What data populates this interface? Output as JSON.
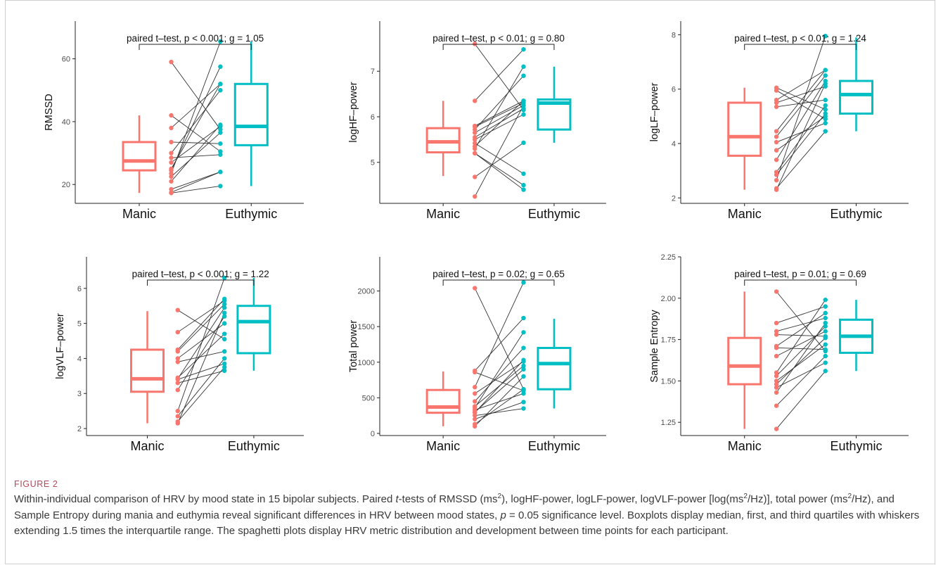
{
  "figure": {
    "label": "FIGURE 2",
    "caption_parts": [
      "Within-individual comparison of HRV by mood state in 15 bipolar subjects. Paired ",
      "t",
      "-tests of RMSSD (ms",
      "2",
      "), logHF-power, logLF-power, logVLF-power [log(ms",
      "2",
      "/Hz)], total power (ms",
      "2",
      "/Hz), and Sample Entropy during mania and euthymia reveal significant differences in HRV between mood states, ",
      "p",
      " = 0.05 significance level. Boxplots display median, first, and third quartiles with whiskers extending 1.5 times the interquartile range. The spaghetti plots display HRV metric distribution and development between time points for each participant."
    ]
  },
  "colors": {
    "manic": "#F8766D",
    "euthymic": "#00BFC4",
    "line": "#333333",
    "axis": "#222222"
  },
  "chart_data": [
    {
      "type": "box",
      "ylabel": "RMSSD",
      "categories": [
        "Manic",
        "Euthymic"
      ],
      "annotation": "paired t–test, p < 0.001; g = 1.05",
      "ylim": [
        14,
        72
      ],
      "yticks": [
        20,
        40,
        60
      ],
      "box": [
        {
          "name": "Manic",
          "whisker_low": 17.3,
          "q1": 24.5,
          "median": 27.5,
          "q3": 33.5,
          "whisker_high": 42
        },
        {
          "name": "Euthymic",
          "whisker_low": 19.5,
          "q1": 32.5,
          "median": 38.5,
          "q3": 52,
          "whisker_high": 65.5
        }
      ],
      "pairs": [
        [
          59,
          37.5
        ],
        [
          42,
          30.5
        ],
        [
          38,
          52
        ],
        [
          33.5,
          33
        ],
        [
          30,
          50
        ],
        [
          28.5,
          29.5
        ],
        [
          27,
          38.5
        ],
        [
          25,
          52
        ],
        [
          24.5,
          57.5
        ],
        [
          23.5,
          65.5
        ],
        [
          22.5,
          36.5
        ],
        [
          21,
          39
        ],
        [
          18.5,
          24
        ],
        [
          17.5,
          24
        ],
        [
          17.3,
          19.5
        ]
      ]
    },
    {
      "type": "box",
      "ylabel": "logHF–power",
      "categories": [
        "Manic",
        "Euthymic"
      ],
      "annotation": "paired t–test, p < 0.01; g = 0.80",
      "ylim": [
        4.1,
        8.1
      ],
      "yticks": [
        5,
        6,
        7
      ],
      "box": [
        {
          "name": "Manic",
          "whisker_low": 4.7,
          "q1": 5.22,
          "median": 5.45,
          "q3": 5.75,
          "whisker_high": 6.35
        },
        {
          "name": "Euthymic",
          "whisker_low": 5.43,
          "q1": 5.72,
          "median": 6.3,
          "q3": 6.38,
          "whisker_high": 7.1
        }
      ],
      "pairs": [
        [
          7.6,
          6.15
        ],
        [
          6.35,
          7.48
        ],
        [
          5.8,
          6.35
        ],
        [
          5.78,
          6.3
        ],
        [
          5.72,
          6.9
        ],
        [
          5.65,
          6.25
        ],
        [
          5.55,
          6.18
        ],
        [
          5.5,
          6.05
        ],
        [
          5.42,
          4.75
        ],
        [
          5.35,
          6.35
        ],
        [
          5.3,
          7.1
        ],
        [
          5.2,
          4.5
        ],
        [
          5.2,
          4.4
        ],
        [
          4.68,
          5.43
        ],
        [
          4.25,
          6.25
        ]
      ]
    },
    {
      "type": "box",
      "ylabel": "logLF–power",
      "categories": [
        "Manic",
        "Euthymic"
      ],
      "annotation": "paired t–test, p < 0.01; g = 1.24",
      "ylim": [
        1.8,
        8.5
      ],
      "yticks": [
        2,
        4,
        6,
        8
      ],
      "box": [
        {
          "name": "Manic",
          "whisker_low": 2.3,
          "q1": 3.55,
          "median": 4.25,
          "q3": 5.5,
          "whisker_high": 6.05
        },
        {
          "name": "Euthymic",
          "whisker_low": 4.45,
          "q1": 5.1,
          "median": 5.8,
          "q3": 6.3,
          "whisker_high": 7.9
        }
      ],
      "pairs": [
        [
          6.05,
          5.25
        ],
        [
          5.95,
          4.9
        ],
        [
          5.6,
          6.7
        ],
        [
          5.5,
          6.1
        ],
        [
          5.35,
          5.6
        ],
        [
          4.45,
          6.7
        ],
        [
          4.25,
          6.5
        ],
        [
          4.05,
          4.75
        ],
        [
          3.75,
          5.0
        ],
        [
          3.4,
          6.3
        ],
        [
          2.95,
          5.4
        ],
        [
          2.85,
          5.1
        ],
        [
          2.65,
          7.95
        ],
        [
          2.35,
          4.45
        ],
        [
          2.3,
          6.2
        ]
      ]
    },
    {
      "type": "box",
      "ylabel": "logVLF–power",
      "categories": [
        "Manic",
        "Euthymic"
      ],
      "annotation": "paired t–test, p < 0.001; g = 1.22",
      "ylim": [
        1.8,
        6.9
      ],
      "yticks": [
        2,
        3,
        4,
        5,
        6
      ],
      "box": [
        {
          "name": "Manic",
          "whisker_low": 2.15,
          "q1": 3.05,
          "median": 3.42,
          "q3": 4.25,
          "whisker_high": 5.35
        },
        {
          "name": "Euthymic",
          "whisker_low": 3.65,
          "q1": 4.15,
          "median": 5.05,
          "q3": 5.5,
          "whisker_high": 6.3
        }
      ],
      "pairs": [
        [
          5.38,
          4.55
        ],
        [
          4.75,
          5.65
        ],
        [
          4.25,
          5.7
        ],
        [
          4.2,
          5.55
        ],
        [
          4.0,
          5.0
        ],
        [
          3.9,
          4.2
        ],
        [
          3.45,
          4.7
        ],
        [
          3.42,
          5.45
        ],
        [
          3.4,
          3.85
        ],
        [
          3.3,
          3.65
        ],
        [
          3.1,
          5.2
        ],
        [
          2.5,
          6.3
        ],
        [
          2.35,
          4.0
        ],
        [
          2.2,
          3.75
        ],
        [
          2.15,
          5.3
        ]
      ]
    },
    {
      "type": "box",
      "ylabel": "Total power",
      "categories": [
        "Manic",
        "Euthymic"
      ],
      "annotation": "paired t–test, p = 0.02; g = 0.65",
      "ylim": [
        -30,
        2480
      ],
      "yticks": [
        0,
        500,
        1000,
        1500,
        2000
      ],
      "box": [
        {
          "name": "Manic",
          "whisker_low": 100,
          "q1": 290,
          "median": 370,
          "q3": 610,
          "whisker_high": 870
        },
        {
          "name": "Euthymic",
          "whisker_low": 350,
          "q1": 620,
          "median": 980,
          "q3": 1200,
          "whisker_high": 1610
        }
      ],
      "pairs": [
        [
          2040,
          620
        ],
        [
          880,
          1620
        ],
        [
          860,
          600
        ],
        [
          650,
          2120
        ],
        [
          560,
          1010
        ],
        [
          450,
          1200
        ],
        [
          380,
          950
        ],
        [
          360,
          1420
        ],
        [
          330,
          560
        ],
        [
          300,
          900
        ],
        [
          290,
          1030
        ],
        [
          250,
          350
        ],
        [
          200,
          440
        ],
        [
          130,
          620
        ],
        [
          100,
          800
        ]
      ]
    },
    {
      "type": "box",
      "ylabel": "Sample Entropy",
      "categories": [
        "Manic",
        "Euthymic"
      ],
      "annotation": "paired t–test, p = 0.01; g = 0.69",
      "ylim": [
        1.17,
        2.25
      ],
      "yticks": [
        1.25,
        1.5,
        1.75,
        2.0,
        2.25
      ],
      "ytick_labels": [
        "1.25",
        "1.50",
        "1.75",
        "2.00",
        "2.25"
      ],
      "box": [
        {
          "name": "Manic",
          "whisker_low": 1.21,
          "q1": 1.48,
          "median": 1.59,
          "q3": 1.76,
          "whisker_high": 2.04
        },
        {
          "name": "Euthymic",
          "whisker_low": 1.56,
          "q1": 1.67,
          "median": 1.77,
          "q3": 1.87,
          "whisker_high": 1.99
        }
      ],
      "pairs": [
        [
          2.04,
          1.68
        ],
        [
          1.85,
          1.95
        ],
        [
          1.8,
          1.88
        ],
        [
          1.78,
          1.77
        ],
        [
          1.71,
          1.91
        ],
        [
          1.7,
          1.69
        ],
        [
          1.65,
          1.8
        ],
        [
          1.55,
          1.99
        ],
        [
          1.5,
          1.72
        ],
        [
          1.48,
          1.76
        ],
        [
          1.46,
          1.61
        ],
        [
          1.43,
          1.85
        ],
        [
          1.35,
          1.65
        ],
        [
          1.21,
          1.56
        ],
        [
          1.53,
          1.83
        ]
      ]
    }
  ]
}
